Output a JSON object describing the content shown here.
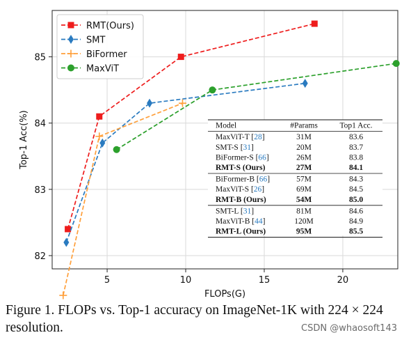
{
  "chart_data": {
    "type": "line",
    "xlabel": "FLOPs(G)",
    "ylabel": "Top-1 Acc(%)",
    "xlim": [
      1.5,
      23.5
    ],
    "ylim": [
      81.8,
      85.7
    ],
    "x_ticks": [
      {
        "value": 5,
        "label": "5"
      },
      {
        "value": 10,
        "label": "10"
      },
      {
        "value": 15,
        "label": "15"
      },
      {
        "value": 20,
        "label": "20"
      }
    ],
    "y_ticks": [
      {
        "value": 82,
        "label": "82"
      },
      {
        "value": 83,
        "label": "83"
      },
      {
        "value": 84,
        "label": "84"
      },
      {
        "value": 85,
        "label": "85"
      }
    ],
    "grid": true,
    "legend_position": "top-left",
    "series": [
      {
        "name": "RMT(Ours)",
        "color": "#ee1c1c",
        "marker": "square",
        "points": [
          {
            "x": 2.5,
            "y": 82.4
          },
          {
            "x": 4.5,
            "y": 84.1
          },
          {
            "x": 9.7,
            "y": 85.0
          },
          {
            "x": 18.2,
            "y": 85.5
          }
        ]
      },
      {
        "name": "SMT",
        "color": "#2a7bc0",
        "marker": "diamond",
        "points": [
          {
            "x": 2.4,
            "y": 82.2
          },
          {
            "x": 4.7,
            "y": 83.7
          },
          {
            "x": 7.7,
            "y": 84.3
          },
          {
            "x": 17.6,
            "y": 84.6
          }
        ]
      },
      {
        "name": "BiFormer",
        "color": "#ff9f3a",
        "marker": "plus",
        "points": [
          {
            "x": 2.2,
            "y": 81.4
          },
          {
            "x": 4.5,
            "y": 83.8
          },
          {
            "x": 9.8,
            "y": 84.3
          }
        ]
      },
      {
        "name": "MaxViT",
        "color": "#2ca02c",
        "marker": "circle",
        "points": [
          {
            "x": 5.6,
            "y": 83.6
          },
          {
            "x": 11.7,
            "y": 84.5
          },
          {
            "x": 23.4,
            "y": 84.9
          }
        ]
      }
    ],
    "table": {
      "headers": [
        "Model",
        "#Params",
        "Top1 Acc."
      ],
      "groups": [
        [
          {
            "name": "MaxViT-T",
            "ref": "28",
            "params": "31M",
            "acc": "83.6",
            "bold": false
          },
          {
            "name": "SMT-S",
            "ref": "31",
            "params": "20M",
            "acc": "83.7",
            "bold": false
          },
          {
            "name": "BiFormer-S",
            "ref": "66",
            "params": "26M",
            "acc": "83.8",
            "bold": false
          },
          {
            "name": "RMT-S (Ours)",
            "ref": "",
            "params": "27M",
            "acc": "84.1",
            "bold": true
          }
        ],
        [
          {
            "name": "BiFormer-B",
            "ref": "66",
            "params": "57M",
            "acc": "84.3",
            "bold": false
          },
          {
            "name": "MaxViT-S",
            "ref": "26",
            "params": "69M",
            "acc": "84.5",
            "bold": false
          },
          {
            "name": "RMT-B (Ours)",
            "ref": "",
            "params": "54M",
            "acc": "85.0",
            "bold": true
          }
        ],
        [
          {
            "name": "SMT-L",
            "ref": "31",
            "params": "81M",
            "acc": "84.6",
            "bold": false
          },
          {
            "name": "MaxViT-B",
            "ref": "44",
            "params": "120M",
            "acc": "84.9",
            "bold": false
          },
          {
            "name": "RMT-L (Ours)",
            "ref": "",
            "params": "95M",
            "acc": "85.5",
            "bold": true
          }
        ]
      ]
    }
  },
  "caption": "Figure 1. FLOPs vs. Top-1 accuracy on ImageNet-1K with 224 × 224 resolution.",
  "watermark": "CSDN @whaosoft143"
}
